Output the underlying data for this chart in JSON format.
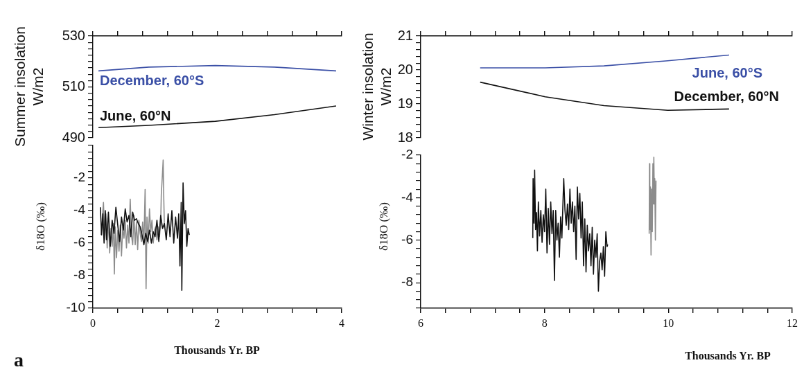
{
  "chart_data": [
    {
      "type": "line",
      "marker": "none",
      "ylabel": "Summer insolation\nW/m2",
      "tick_labels": "y",
      "xlim": [
        0,
        4
      ],
      "xticks": [
        {
          "value": 0,
          "label": null
        },
        {
          "value": 0.4,
          "label": null
        },
        {
          "value": 0.8,
          "label": null
        },
        {
          "value": 1.2,
          "label": null
        },
        {
          "value": 1.6,
          "label": null
        },
        {
          "value": 2,
          "label": null
        },
        {
          "value": 2.4,
          "label": null
        },
        {
          "value": 2.8,
          "label": null
        },
        {
          "value": 3.2,
          "label": null
        },
        {
          "value": 3.6,
          "label": null
        },
        {
          "value": 4,
          "label": null
        }
      ],
      "ylim": [
        490,
        530
      ],
      "yticks": [
        490,
        {
          "value": 492.5,
          "label": null
        },
        {
          "value": 495,
          "label": null
        },
        {
          "value": 497.5,
          "label": null
        },
        {
          "value": 500,
          "label": null
        },
        {
          "value": 502.5,
          "label": null
        },
        {
          "value": 505,
          "label": null
        },
        {
          "value": 507.5,
          "label": null
        },
        510,
        {
          "value": 512.5,
          "label": null
        },
        {
          "value": 515,
          "label": null
        },
        {
          "value": 517.5,
          "label": null
        },
        {
          "value": 520,
          "label": null
        },
        {
          "value": 522.5,
          "label": null
        },
        {
          "value": 525,
          "label": null
        },
        {
          "value": 527.5,
          "label": null
        },
        530
      ],
      "series": [
        {
          "name": "December, 60°S",
          "color": "#3a4fa6",
          "x": [
            0.09,
            0.9,
            1.97,
            2.92,
            3.91
          ],
          "values": [
            516.3,
            517.8,
            518.4,
            517.8,
            516.3
          ]
        },
        {
          "name": "June, 60°N",
          "color": "#111111",
          "x": [
            0.09,
            0.9,
            1.97,
            2.92,
            3.91
          ],
          "values": [
            494.0,
            494.9,
            496.5,
            499.1,
            502.5
          ]
        }
      ]
    },
    {
      "type": "line",
      "marker": "none",
      "xlabel": "Thousands Yr. BP",
      "ylabel": "δ18O (‰)",
      "annotations": [
        "a"
      ],
      "xlim": [
        0,
        4
      ],
      "xticks": [
        0,
        {
          "value": 0.4,
          "label": null
        },
        {
          "value": 0.8,
          "label": null
        },
        {
          "value": 1.2,
          "label": null
        },
        {
          "value": 1.6,
          "label": null
        },
        2,
        {
          "value": 2.4,
          "label": null
        },
        {
          "value": 2.8,
          "label": null
        },
        {
          "value": 3.2,
          "label": null
        },
        {
          "value": 3.6,
          "label": null
        },
        4
      ],
      "ylim": [
        -10,
        0
      ],
      "yticks": [
        -10,
        {
          "value": -9.6,
          "label": null
        },
        {
          "value": -9.2,
          "label": null
        },
        {
          "value": -8.8,
          "label": null
        },
        {
          "value": -8.4,
          "label": null
        },
        -8,
        {
          "value": -7.6,
          "label": null
        },
        {
          "value": -7.2,
          "label": null
        },
        {
          "value": -6.8,
          "label": null
        },
        {
          "value": -6.4,
          "label": null
        },
        -6,
        {
          "value": -5.6,
          "label": null
        },
        {
          "value": -5.2,
          "label": null
        },
        {
          "value": -4.8,
          "label": null
        },
        {
          "value": -4.4,
          "label": null
        },
        -4,
        {
          "value": -3.6,
          "label": null
        },
        {
          "value": -3.2,
          "label": null
        },
        {
          "value": -2.8,
          "label": null
        },
        {
          "value": -2.4,
          "label": null
        },
        -2,
        {
          "value": -1.6,
          "label": null
        },
        {
          "value": -1.2,
          "label": null
        },
        {
          "value": -0.8,
          "label": null
        },
        {
          "value": -0.4,
          "label": null
        },
        {
          "value": 0,
          "label": null
        }
      ],
      "series": [
        {
          "color": "#111111",
          "x": [
            0.12,
            0.14,
            0.16,
            0.18,
            0.2,
            0.22,
            0.25,
            0.28,
            0.31,
            0.34,
            0.37,
            0.4,
            0.43,
            0.46,
            0.49,
            0.52,
            0.55,
            0.58,
            0.61,
            0.64,
            0.67,
            0.7,
            0.73,
            0.76,
            0.79,
            0.82,
            0.85,
            0.88,
            0.91,
            0.94,
            0.97,
            1.0,
            1.03,
            1.06,
            1.09,
            1.12,
            1.15,
            1.18,
            1.21,
            1.24,
            1.27,
            1.3,
            1.33,
            1.36,
            1.38,
            1.4,
            1.42,
            1.43,
            1.45,
            1.47,
            1.49,
            1.51,
            1.53,
            1.55
          ],
          "values": [
            -3.8,
            -5.5,
            -4.2,
            -6.0,
            -4.0,
            -5.8,
            -4.1,
            -6.2,
            -4.6,
            -5.4,
            -3.8,
            -4.9,
            -5.9,
            -4.4,
            -5.2,
            -3.9,
            -4.7,
            -4.3,
            -5.6,
            -4.1,
            -4.6,
            -4.5,
            -4.8,
            -5.0,
            -5.5,
            -6.1,
            -5.4,
            -5.9,
            -5.2,
            -6.0,
            -5.3,
            -5.6,
            -4.6,
            -5.9,
            -4.3,
            -5.1,
            -4.8,
            -5.8,
            -4.2,
            -5.6,
            -4.0,
            -6.0,
            -4.4,
            -5.7,
            -4.2,
            -7.4,
            -3.5,
            -8.9,
            -2.3,
            -4.8,
            -4.0,
            -6.2,
            -5.1,
            -5.5
          ]
        },
        {
          "color": "#8c8c8c",
          "x": [
            0.13,
            0.15,
            0.17,
            0.19,
            0.21,
            0.23,
            0.25,
            0.27,
            0.29,
            0.31,
            0.33,
            0.345,
            0.36,
            0.38,
            0.4,
            0.42,
            0.44,
            0.46,
            0.48,
            0.5,
            0.52,
            0.54,
            0.56,
            0.58,
            0.6,
            0.62,
            0.64,
            0.66,
            0.68,
            0.7,
            0.72,
            0.74,
            0.76,
            0.78,
            0.8,
            0.82,
            0.84,
            0.855,
            0.87,
            0.89,
            0.91,
            0.93,
            0.95,
            0.97,
            0.99,
            1.01,
            1.03,
            1.05,
            1.07,
            1.09,
            1.1,
            1.115,
            1.13,
            1.14,
            1.15
          ],
          "values": [
            -5.5,
            -4.6,
            -3.5,
            -5.8,
            -4.2,
            -6.3,
            -4.5,
            -6.6,
            -5.1,
            -6.2,
            -4.8,
            -7.9,
            -5.0,
            -6.9,
            -5.2,
            -6.5,
            -4.9,
            -6.8,
            -5.0,
            -5.7,
            -4.6,
            -6.3,
            -4.9,
            -6.0,
            -3.3,
            -5.5,
            -6.1,
            -4.3,
            -6.1,
            -4.7,
            -6.4,
            -4.6,
            -5.4,
            -5.9,
            -4.7,
            -6.0,
            -2.7,
            -8.8,
            -4.4,
            -6.0,
            -3.9,
            -5.3,
            -4.6,
            -6.0,
            -5.2,
            -5.0,
            -5.8,
            -5.0,
            -5.6,
            -4.8,
            -3.0,
            -2.0,
            -0.9,
            -3.3,
            -5.0
          ]
        }
      ]
    },
    {
      "type": "line",
      "marker": "none",
      "ylabel": "Winter insolation\nW/m2",
      "tick_labels": "y",
      "xlim": [
        6,
        12
      ],
      "xticks": [
        {
          "value": 6,
          "label": null
        },
        {
          "value": 6.4,
          "label": null
        },
        {
          "value": 6.8,
          "label": null
        },
        {
          "value": 7.2,
          "label": null
        },
        {
          "value": 7.6,
          "label": null
        },
        {
          "value": 8,
          "label": null
        },
        {
          "value": 8.4,
          "label": null
        },
        {
          "value": 8.8,
          "label": null
        },
        {
          "value": 9.2,
          "label": null
        },
        {
          "value": 9.6,
          "label": null
        },
        {
          "value": 10,
          "label": null
        },
        {
          "value": 10.4,
          "label": null
        },
        {
          "value": 10.8,
          "label": null
        },
        {
          "value": 11.2,
          "label": null
        },
        {
          "value": 11.6,
          "label": null
        },
        {
          "value": 12,
          "label": null
        }
      ],
      "ylim": [
        18,
        21
      ],
      "yticks": [
        18,
        {
          "value": 18.2,
          "label": null
        },
        {
          "value": 18.4,
          "label": null
        },
        {
          "value": 18.6,
          "label": null
        },
        {
          "value": 18.8,
          "label": null
        },
        19,
        {
          "value": 19.2,
          "label": null
        },
        {
          "value": 19.4,
          "label": null
        },
        {
          "value": 19.6,
          "label": null
        },
        {
          "value": 19.8,
          "label": null
        },
        20,
        {
          "value": 20.2,
          "label": null
        },
        {
          "value": 20.4,
          "label": null
        },
        {
          "value": 20.6,
          "label": null
        },
        {
          "value": 20.8,
          "label": null
        },
        21
      ],
      "series": [
        {
          "name": "June, 60°S",
          "color": "#3a4fa6",
          "x": [
            6.96,
            8.01,
            8.96,
            9.99,
            10.98
          ],
          "values": [
            20.06,
            20.06,
            20.12,
            20.27,
            20.44
          ]
        },
        {
          "name": "December, 60°N",
          "color": "#111111",
          "x": [
            6.96,
            8.01,
            8.96,
            9.99,
            10.98
          ],
          "values": [
            19.64,
            19.21,
            18.95,
            18.81,
            18.85
          ]
        }
      ]
    },
    {
      "type": "line",
      "marker": "none",
      "xlabel": "Thousands Yr. BP",
      "ylabel": "δ18O (‰)",
      "xlim": [
        6,
        12
      ],
      "xticks": [
        6,
        {
          "value": 6.4,
          "label": null
        },
        {
          "value": 6.8,
          "label": null
        },
        {
          "value": 7.2,
          "label": null
        },
        {
          "value": 7.6,
          "label": null
        },
        8,
        {
          "value": 8.4,
          "label": null
        },
        {
          "value": 8.8,
          "label": null
        },
        {
          "value": 9.2,
          "label": null
        },
        {
          "value": 9.6,
          "label": null
        },
        10,
        {
          "value": 10.4,
          "label": null
        },
        {
          "value": 10.8,
          "label": null
        },
        {
          "value": 11.2,
          "label": null
        },
        {
          "value": 11.6,
          "label": null
        },
        12
      ],
      "ylim": [
        -9.2,
        -2
      ],
      "yticks": [
        {
          "value": -9.2,
          "label": null
        },
        {
          "value": -8.8,
          "label": null
        },
        {
          "value": -8.4,
          "label": null
        },
        -8,
        {
          "value": -7.6,
          "label": null
        },
        {
          "value": -7.2,
          "label": null
        },
        {
          "value": -6.8,
          "label": null
        },
        {
          "value": -6.4,
          "label": null
        },
        -6,
        {
          "value": -5.6,
          "label": null
        },
        {
          "value": -5.2,
          "label": null
        },
        {
          "value": -4.8,
          "label": null
        },
        {
          "value": -4.4,
          "label": null
        },
        -4,
        {
          "value": -3.6,
          "label": null
        },
        {
          "value": -3.2,
          "label": null
        },
        {
          "value": -2.8,
          "label": null
        },
        {
          "value": -2.4,
          "label": null
        },
        -2
      ],
      "series": [
        {
          "color": "#111111",
          "x": [
            7.81,
            7.815,
            7.83,
            7.84,
            7.855,
            7.87,
            7.885,
            7.9,
            7.92,
            7.94,
            7.96,
            7.98,
            8.0,
            8.02,
            8.04,
            8.06,
            8.08,
            8.1,
            8.12,
            8.14,
            8.16,
            8.18,
            8.2,
            8.22,
            8.24,
            8.26,
            8.28,
            8.3,
            8.31,
            8.33,
            8.35,
            8.37,
            8.39,
            8.41,
            8.43,
            8.45,
            8.47,
            8.49,
            8.51,
            8.53,
            8.55,
            8.57,
            8.59,
            8.61,
            8.63,
            8.65,
            8.67,
            8.69,
            8.71,
            8.73,
            8.75,
            8.77,
            8.79,
            8.81,
            8.83,
            8.85,
            8.87,
            8.89,
            8.91,
            8.93,
            8.95,
            8.97,
            8.99,
            9.01,
            9.02
          ],
          "values": [
            -5.9,
            -3.1,
            -5.2,
            -2.7,
            -5.5,
            -4.7,
            -6.5,
            -4.2,
            -5.8,
            -4.6,
            -6.1,
            -4.8,
            -5.6,
            -3.6,
            -6.6,
            -4.5,
            -6.2,
            -4.2,
            -5.7,
            -4.6,
            -7.9,
            -4.6,
            -6.0,
            -5.2,
            -6.8,
            -4.9,
            -5.9,
            -4.0,
            -3.1,
            -4.6,
            -5.3,
            -4.3,
            -5.5,
            -3.6,
            -5.2,
            -4.2,
            -5.6,
            -4.4,
            -6.9,
            -3.5,
            -5.0,
            -3.8,
            -5.9,
            -4.2,
            -7.2,
            -5.0,
            -7.5,
            -5.3,
            -6.5,
            -5.7,
            -7.2,
            -5.4,
            -7.6,
            -6.0,
            -6.8,
            -5.7,
            -8.4,
            -7.0,
            -6.6,
            -7.4,
            -6.3,
            -7.7,
            -5.6,
            -6.3,
            -6.2
          ]
        },
        {
          "color": "#8c8c8c",
          "x": [
            9.69,
            9.695,
            9.7,
            9.71,
            9.72,
            9.73,
            9.74,
            9.75,
            9.76,
            9.765,
            9.775,
            9.78,
            9.79,
            9.8
          ],
          "values": [
            -5.7,
            -2.4,
            -5.5,
            -3.5,
            -6.7,
            -3.6,
            -5.6,
            -2.4,
            -4.3,
            -2.1,
            -4.3,
            -3.1,
            -6.0,
            -3.2
          ]
        }
      ]
    }
  ]
}
